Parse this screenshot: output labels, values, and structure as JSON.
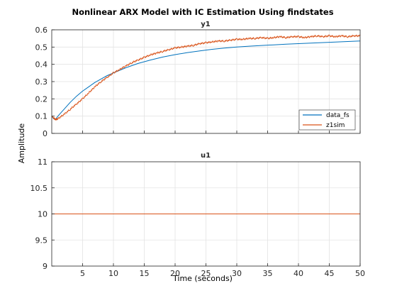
{
  "figure": {
    "title": "Nonlinear ARX Model with IC Estimation Using findstates",
    "xlabel": "Time (seconds)",
    "ylabel": "Amplitude"
  },
  "colors": {
    "data_fs": "#0072bd",
    "z1sim": "#d95319",
    "grid": "#e3e3e3",
    "axis": "#262626"
  },
  "chart_data": [
    {
      "type": "line",
      "subtitle": "y1",
      "xlim": [
        0,
        50
      ],
      "ylim": [
        0,
        0.6
      ],
      "xticks": [
        5,
        10,
        15,
        20,
        25,
        30,
        35,
        40,
        45,
        50
      ],
      "xtick_labels_visible": false,
      "yticks": [
        0,
        0.1,
        0.2,
        0.3,
        0.4,
        0.5,
        0.6
      ],
      "ytick_labels": [
        "0",
        "0.1",
        "0.2",
        "0.3",
        "0.4",
        "0.5",
        "0.6"
      ],
      "grid": true,
      "legend": {
        "placement": "bottom-right",
        "entries": [
          "data_fs",
          "z1sim"
        ]
      },
      "series": [
        {
          "name": "data_fs",
          "x": [
            0,
            0.3,
            0.6,
            1,
            1.5,
            2,
            3,
            4,
            5,
            6,
            7,
            8,
            9,
            10,
            12,
            14,
            16,
            18,
            20,
            22,
            24,
            26,
            28,
            30,
            32,
            34,
            36,
            38,
            40,
            42,
            44,
            46,
            48,
            50
          ],
          "y": [
            0.1,
            0.085,
            0.08,
            0.1,
            0.12,
            0.14,
            0.18,
            0.215,
            0.245,
            0.27,
            0.295,
            0.315,
            0.335,
            0.35,
            0.38,
            0.405,
            0.425,
            0.442,
            0.456,
            0.468,
            0.478,
            0.487,
            0.494,
            0.5,
            0.505,
            0.509,
            0.513,
            0.517,
            0.52,
            0.523,
            0.526,
            0.529,
            0.532,
            0.535
          ]
        },
        {
          "name": "z1sim",
          "x": [
            0,
            0.3,
            0.6,
            1,
            2,
            3,
            4,
            5,
            6,
            7,
            8,
            9,
            10,
            11,
            12,
            13,
            14,
            15,
            16,
            17,
            18,
            19,
            20,
            21,
            22,
            23,
            24,
            25,
            26,
            27,
            28,
            29,
            30,
            31,
            32,
            33,
            34,
            35,
            36,
            37,
            38,
            39,
            40,
            41,
            42,
            43,
            44,
            45,
            46,
            47,
            48,
            49,
            50
          ],
          "y": [
            0.1,
            0.09,
            0.08,
            0.085,
            0.11,
            0.14,
            0.17,
            0.2,
            0.235,
            0.27,
            0.3,
            0.325,
            0.35,
            0.37,
            0.39,
            0.41,
            0.425,
            0.44,
            0.455,
            0.465,
            0.475,
            0.485,
            0.495,
            0.5,
            0.505,
            0.51,
            0.52,
            0.525,
            0.53,
            0.535,
            0.535,
            0.54,
            0.545,
            0.545,
            0.55,
            0.55,
            0.555,
            0.55,
            0.555,
            0.56,
            0.555,
            0.56,
            0.56,
            0.555,
            0.56,
            0.565,
            0.56,
            0.565,
            0.56,
            0.565,
            0.56,
            0.565,
            0.565
          ]
        }
      ]
    },
    {
      "type": "line",
      "subtitle": "u1",
      "xlim": [
        0,
        50
      ],
      "ylim": [
        9,
        11
      ],
      "xticks": [
        5,
        10,
        15,
        20,
        25,
        30,
        35,
        40,
        45,
        50
      ],
      "xtick_labels": [
        "5",
        "10",
        "15",
        "20",
        "25",
        "30",
        "35",
        "40",
        "45",
        "50"
      ],
      "yticks": [
        9,
        9.5,
        10,
        10.5,
        11
      ],
      "ytick_labels": [
        "9",
        "9.5",
        "10",
        "10.5",
        "11"
      ],
      "grid": true,
      "series": [
        {
          "name": "data_fs",
          "x": [
            0,
            50
          ],
          "y": [
            10,
            10
          ]
        },
        {
          "name": "z1sim",
          "x": [
            0,
            50
          ],
          "y": [
            10,
            10
          ]
        }
      ]
    }
  ]
}
